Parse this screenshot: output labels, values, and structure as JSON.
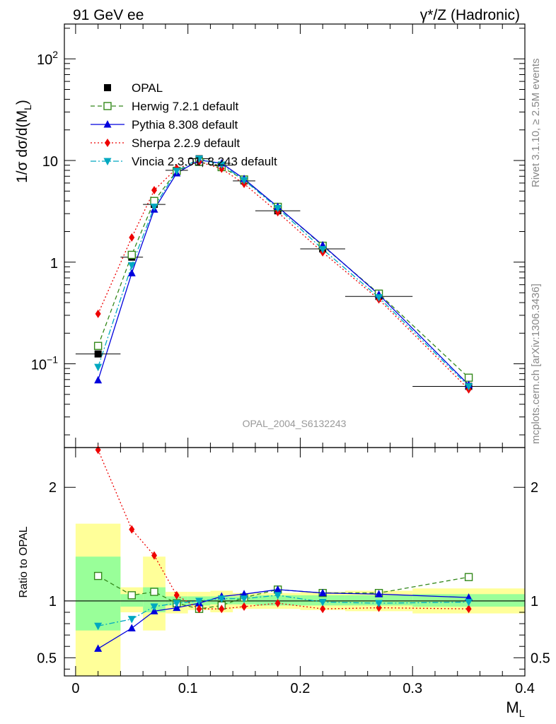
{
  "header": {
    "left_title": "91 GeV ee",
    "right_title": "γ*/Z (Hadronic)"
  },
  "side_labels": {
    "rivet": "Rivet 3.1.10, ≥ 2.5M events",
    "mcplots": "mcplots.cern.ch [arXiv:1306.3436]"
  },
  "watermark": "OPAL_2004_S6132243",
  "chart_data": [
    {
      "type": "line",
      "panel": "main",
      "ylabel": "1/σ dσ/d(M_L)",
      "yscale": "log",
      "ylim": [
        0.015,
        220
      ],
      "xlim": [
        -0.01,
        0.4
      ],
      "yticks": [
        {
          "value": 0.1,
          "base": "10",
          "exp": "−1"
        },
        {
          "value": 1,
          "label": "1"
        },
        {
          "value": 10,
          "label": "10"
        },
        {
          "value": 100,
          "base": "10",
          "exp": "2"
        }
      ],
      "x": [
        0.02,
        0.05,
        0.07,
        0.09,
        0.11,
        0.13,
        0.15,
        0.18,
        0.22,
        0.27,
        0.35
      ],
      "data": {
        "name": "OPAL",
        "values": [
          0.125,
          1.12,
          3.7,
          8.0,
          10.4,
          9.0,
          6.3,
          3.2,
          1.35,
          0.46,
          0.06
        ],
        "bin_edges": [
          0.0,
          0.04,
          0.06,
          0.08,
          0.1,
          0.12,
          0.14,
          0.16,
          0.2,
          0.24,
          0.3,
          0.4
        ]
      },
      "series": [
        {
          "name": "Herwig 7.2.1 default",
          "color": "#33881a",
          "marker": "open-square",
          "dash": "dashed",
          "values": [
            0.15,
            1.18,
            4.0,
            7.9,
            9.7,
            8.6,
            6.5,
            3.5,
            1.45,
            0.49,
            0.073
          ]
        },
        {
          "name": "Pythia 8.308 default",
          "color": "#0000dd",
          "marker": "triangle-up",
          "dash": "solid",
          "values": [
            0.069,
            0.78,
            3.3,
            7.5,
            10.1,
            9.4,
            6.6,
            3.5,
            1.47,
            0.48,
            0.062
          ]
        },
        {
          "name": "Sherpa 2.2.9 default",
          "color": "#ee0000",
          "marker": "diamond",
          "dash": "dotted",
          "values": [
            0.31,
            1.75,
            5.1,
            8.4,
            9.7,
            8.3,
            5.9,
            3.1,
            1.25,
            0.43,
            0.056
          ]
        },
        {
          "name": "Vincia 2.3.01, 8.243 default",
          "color": "#00a8c0",
          "marker": "triangle-down",
          "dash": "dashdot",
          "values": [
            0.093,
            0.93,
            3.5,
            7.9,
            10.4,
            9.1,
            6.4,
            3.4,
            1.34,
            0.45,
            0.06
          ]
        }
      ],
      "legend": "top-left"
    },
    {
      "type": "line",
      "panel": "ratio",
      "ylabel": "Ratio to OPAL",
      "xlabel": "M_L",
      "ylim": [
        0.34,
        2.35
      ],
      "yticks": [
        0.5,
        1,
        2
      ],
      "xticks": [
        0,
        0.1,
        0.2,
        0.3,
        0.4
      ],
      "xtick_labels": [
        "0",
        "0.1",
        "0.2",
        "0.3",
        "0.4"
      ],
      "uncertainty_bands": {
        "bin_edges": [
          0.0,
          0.04,
          0.06,
          0.08,
          0.1,
          0.12,
          0.14,
          0.16,
          0.2,
          0.24,
          0.3,
          0.4
        ],
        "inner": [
          [
            0.74,
            1.39
          ],
          [
            0.95,
            1.06
          ],
          [
            0.9,
            1.12
          ],
          [
            0.96,
            1.04
          ],
          [
            0.96,
            1.04
          ],
          [
            0.97,
            1.04
          ],
          [
            0.97,
            1.04
          ],
          [
            0.96,
            1.05
          ],
          [
            0.96,
            1.05
          ],
          [
            0.96,
            1.05
          ],
          [
            0.95,
            1.06
          ]
        ],
        "outer": [
          [
            0.34,
            1.68
          ],
          [
            0.9,
            1.12
          ],
          [
            0.74,
            1.39
          ],
          [
            0.89,
            1.08
          ],
          [
            0.92,
            1.08
          ],
          [
            0.9,
            1.09
          ],
          [
            0.93,
            1.07
          ],
          [
            0.93,
            1.07
          ],
          [
            0.92,
            1.08
          ],
          [
            0.91,
            1.09
          ],
          [
            0.89,
            1.11
          ]
        ],
        "inner_color": "#99ff99",
        "outer_color": "#ffff99"
      },
      "series": [
        {
          "name": "Herwig 7.2.1 default",
          "color": "#33881a",
          "values": [
            1.22,
            1.05,
            1.08,
            0.98,
            0.93,
            0.96,
            1.03,
            1.1,
            1.07,
            1.07,
            1.21
          ]
        },
        {
          "name": "Pythia 8.308 default",
          "color": "#0000dd",
          "values": [
            0.58,
            0.76,
            0.91,
            0.94,
            0.98,
            1.04,
            1.06,
            1.1,
            1.07,
            1.06,
            1.03
          ]
        },
        {
          "name": "Sherpa 2.2.9 default",
          "color": "#ee0000",
          "values": [
            2.33,
            1.63,
            1.4,
            1.05,
            0.93,
            0.93,
            0.95,
            0.98,
            0.93,
            0.94,
            0.93
          ]
        },
        {
          "name": "Vincia 2.3.01, 8.243 default",
          "color": "#00a8c0",
          "values": [
            0.78,
            0.84,
            0.95,
            0.98,
            1.0,
            1.02,
            1.02,
            1.05,
            0.99,
            0.98,
            0.99
          ]
        }
      ]
    }
  ]
}
